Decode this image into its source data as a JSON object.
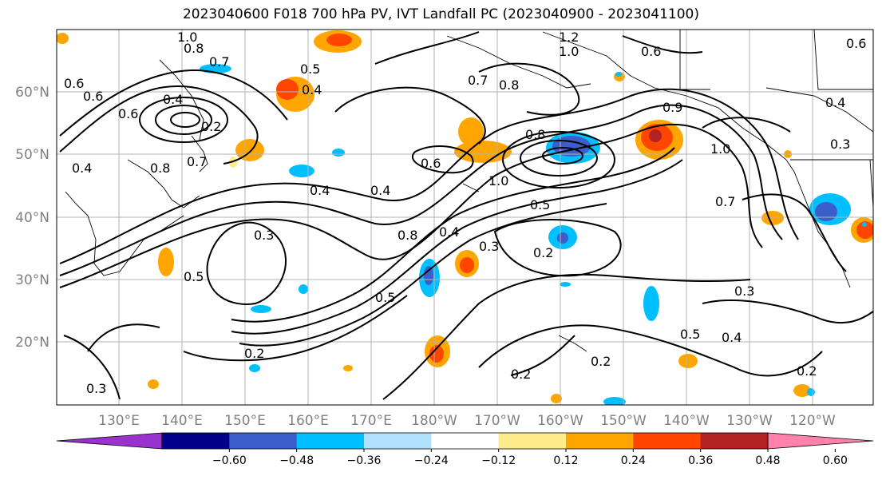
{
  "title": "2023040600 F018 700 hPa PV, IVT Landfall PC (2023040900 - 2023041100)",
  "lon_labels": [
    "130°E",
    "140°E",
    "150°E",
    "160°E",
    "170°E",
    "180°W",
    "170°W",
    "160°W",
    "150°W",
    "140°W",
    "130°W",
    "120°W"
  ],
  "lat_labels": [
    "60°N",
    "50°N",
    "40°N",
    "30°N",
    "20°N"
  ],
  "colorbar": {
    "colors": [
      "#9a32cd",
      "#00008b",
      "#3a5fcd",
      "#00bfff",
      "#b0e2ff",
      "#ffffff",
      "#ffec8b",
      "#ffa500",
      "#ff4500",
      "#b22222",
      "#ff82ab"
    ],
    "tick_labels": [
      "−0.60",
      "−0.48",
      "−0.36",
      "−0.24",
      "−0.12",
      "0.12",
      "0.24",
      "0.36",
      "0.48",
      "0.60"
    ]
  },
  "contour_labels": [
    {
      "text": "1.0"
    },
    {
      "text": "0.8"
    },
    {
      "text": "0.7"
    },
    {
      "text": "0.5"
    },
    {
      "text": "0.4"
    },
    {
      "text": "1.2"
    },
    {
      "text": "1.0"
    },
    {
      "text": "0.7"
    },
    {
      "text": "0.8"
    },
    {
      "text": "0.6"
    },
    {
      "text": "0.6"
    },
    {
      "text": "0.6"
    },
    {
      "text": "0.4"
    },
    {
      "text": "0.2"
    },
    {
      "text": "0.7"
    },
    {
      "text": "0.6"
    },
    {
      "text": "0.4"
    },
    {
      "text": "0.8"
    },
    {
      "text": "1.0"
    },
    {
      "text": "0.4"
    },
    {
      "text": "0.3"
    },
    {
      "text": "0.8"
    },
    {
      "text": "0.5"
    },
    {
      "text": "0.4"
    },
    {
      "text": "0.3"
    },
    {
      "text": "0.2"
    },
    {
      "text": "0.5"
    },
    {
      "text": "0.2"
    },
    {
      "text": "0.2"
    },
    {
      "text": "0.2"
    },
    {
      "text": "0.5"
    },
    {
      "text": "0.4"
    },
    {
      "text": "0.3"
    },
    {
      "text": "0.2"
    },
    {
      "text": "1.0"
    },
    {
      "text": "0.7"
    },
    {
      "text": "0.4"
    },
    {
      "text": "0.3"
    },
    {
      "text": "0.9"
    },
    {
      "text": "0.6"
    },
    {
      "text": "0.4"
    },
    {
      "text": "0.3"
    },
    {
      "text": "0.6"
    },
    {
      "text": "0.8"
    },
    {
      "text": "0.5"
    }
  ]
}
